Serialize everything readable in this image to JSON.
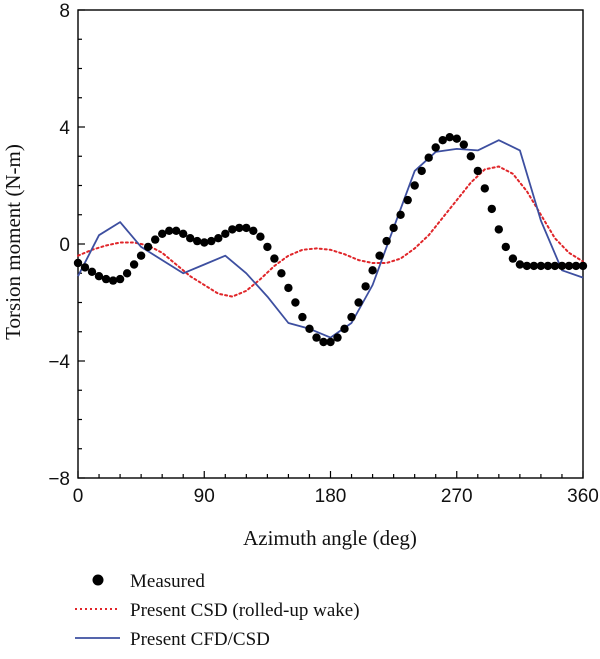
{
  "chart_data": {
    "type": "line",
    "xlabel": "Azimuth angle (deg)",
    "ylabel": "Torsion moment (N-m)",
    "xlim": [
      0,
      360
    ],
    "ylim": [
      -8,
      8
    ],
    "xticks": [
      0,
      90,
      180,
      270,
      360
    ],
    "yticks": [
      -8,
      -4,
      0,
      4,
      8
    ],
    "xtick_labels": [
      "0",
      "90",
      "180",
      "270",
      "360"
    ],
    "ytick_labels": [
      "−8",
      "−4",
      "0",
      "4",
      "8"
    ],
    "grid": false,
    "legend_position": "bottom",
    "series": [
      {
        "name": "Measured",
        "style": "markers",
        "color": "#000000",
        "x": [
          0,
          5,
          10,
          15,
          20,
          25,
          30,
          35,
          40,
          45,
          50,
          55,
          60,
          65,
          70,
          75,
          80,
          85,
          90,
          95,
          100,
          105,
          110,
          115,
          120,
          125,
          130,
          135,
          140,
          145,
          150,
          155,
          160,
          165,
          170,
          175,
          180,
          185,
          190,
          195,
          200,
          205,
          210,
          215,
          220,
          225,
          230,
          235,
          240,
          245,
          250,
          255,
          260,
          265,
          270,
          275,
          280,
          285,
          290,
          295,
          300,
          305,
          310,
          315,
          320,
          325,
          330,
          335,
          340,
          345,
          350,
          355,
          360
        ],
        "y": [
          -0.65,
          -0.8,
          -0.95,
          -1.1,
          -1.2,
          -1.25,
          -1.2,
          -1.0,
          -0.7,
          -0.4,
          -0.1,
          0.15,
          0.35,
          0.45,
          0.45,
          0.35,
          0.2,
          0.1,
          0.05,
          0.1,
          0.2,
          0.35,
          0.5,
          0.55,
          0.55,
          0.45,
          0.25,
          -0.1,
          -0.5,
          -1.0,
          -1.5,
          -2.0,
          -2.5,
          -2.9,
          -3.2,
          -3.35,
          -3.35,
          -3.2,
          -2.9,
          -2.5,
          -2.0,
          -1.45,
          -0.9,
          -0.4,
          0.1,
          0.55,
          1.0,
          1.5,
          2.0,
          2.5,
          2.95,
          3.3,
          3.55,
          3.65,
          3.6,
          3.4,
          3.0,
          2.5,
          1.9,
          1.2,
          0.5,
          -0.1,
          -0.5,
          -0.7,
          -0.75,
          -0.75,
          -0.75,
          -0.75,
          -0.75,
          -0.75,
          -0.75,
          -0.75,
          -0.75
        ]
      },
      {
        "name": "Present CSD (rolled-up wake)",
        "style": "dotted",
        "color": "#e0262a",
        "x": [
          0,
          10,
          20,
          30,
          40,
          50,
          60,
          70,
          80,
          90,
          100,
          110,
          120,
          130,
          140,
          150,
          160,
          170,
          180,
          190,
          200,
          210,
          220,
          230,
          240,
          250,
          260,
          270,
          280,
          290,
          300,
          310,
          320,
          330,
          340,
          350,
          360
        ],
        "y": [
          -0.4,
          -0.2,
          -0.05,
          0.05,
          0.05,
          -0.05,
          -0.3,
          -0.7,
          -1.1,
          -1.4,
          -1.7,
          -1.8,
          -1.6,
          -1.2,
          -0.75,
          -0.4,
          -0.2,
          -0.15,
          -0.2,
          -0.35,
          -0.55,
          -0.65,
          -0.65,
          -0.5,
          -0.15,
          0.3,
          0.9,
          1.5,
          2.1,
          2.55,
          2.65,
          2.4,
          1.8,
          1.0,
          0.2,
          -0.3,
          -0.6
        ]
      },
      {
        "name": "Present CFD/CSD",
        "style": "solid",
        "color": "#3d4fa0",
        "x": [
          0,
          15,
          30,
          45,
          60,
          75,
          90,
          105,
          120,
          135,
          150,
          165,
          180,
          195,
          210,
          225,
          240,
          255,
          270,
          285,
          300,
          315,
          330,
          345,
          360
        ],
        "y": [
          -1.1,
          0.3,
          0.75,
          -0.1,
          -0.55,
          -1.0,
          -0.7,
          -0.4,
          -1.0,
          -1.8,
          -2.7,
          -2.9,
          -3.2,
          -2.7,
          -1.4,
          0.55,
          2.5,
          3.15,
          3.25,
          3.2,
          3.55,
          3.2,
          0.8,
          -0.9,
          -1.15
        ]
      }
    ]
  }
}
